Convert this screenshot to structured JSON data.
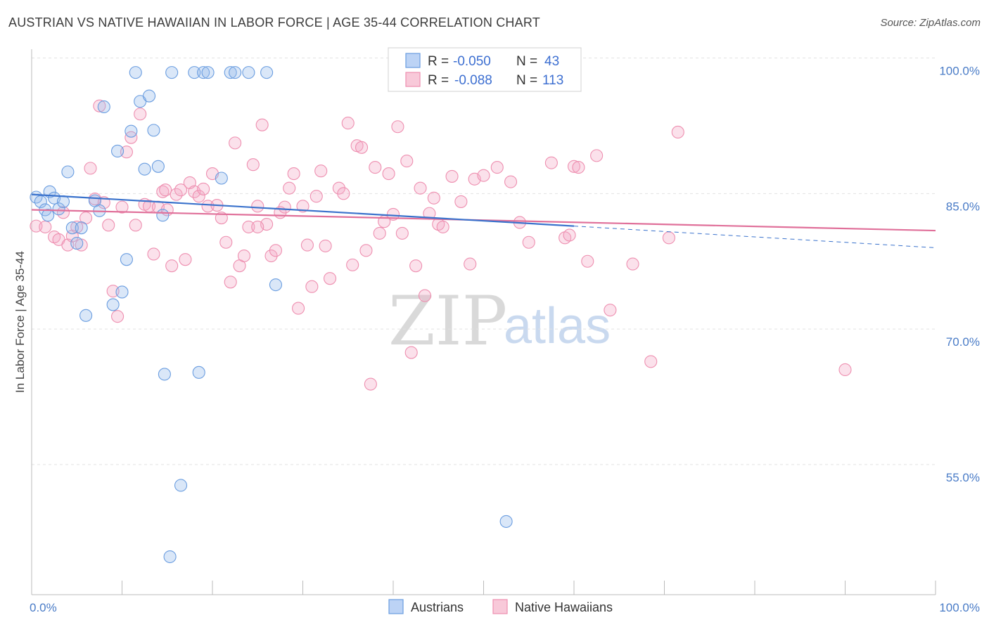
{
  "title": "AUSTRIAN VS NATIVE HAWAIIAN IN LABOR FORCE | AGE 35-44 CORRELATION CHART",
  "source": "Source: ZipAtlas.com",
  "watermark": {
    "zip": "ZIP",
    "atlas": "atlas"
  },
  "legend": {
    "rows": [
      {
        "r_label": "R =",
        "r_value": "-0.050",
        "n_label": "N =",
        "n_value": "43"
      },
      {
        "r_label": "R =",
        "r_value": "-0.088",
        "n_label": "N =",
        "n_value": "113"
      }
    ]
  },
  "bottom_legend": [
    "Austrians",
    "Native Hawaiians"
  ],
  "chart_data": {
    "type": "scatter",
    "title": "AUSTRIAN VS NATIVE HAWAIIAN IN LABOR FORCE | AGE 35-44 CORRELATION CHART",
    "ylabel": "In Labor Force | Age 35-44",
    "xlabel": "",
    "xlim": [
      0,
      100
    ],
    "ylim": [
      42,
      103
    ],
    "x_tick_labels": [
      {
        "value": 0,
        "label": "0.0%"
      },
      {
        "value": 100,
        "label": "100.0%"
      }
    ],
    "y_tick_labels": [
      {
        "value": 100,
        "label": "100.0%"
      },
      {
        "value": 85,
        "label": "85.0%"
      },
      {
        "value": 70,
        "label": "70.0%"
      },
      {
        "value": 55,
        "label": "55.0%"
      }
    ],
    "legend_position": "top-center",
    "grid": true,
    "colors": {
      "austrians": "#6a9de0",
      "native_hawaiians": "#ee8fb0",
      "austrians_line": "#3a72cc",
      "native_hawaiians_line": "#e0709a"
    },
    "series": [
      {
        "name": "Austrians",
        "trend": {
          "x0": 0,
          "y0": 86.3,
          "x1": 60,
          "y1": 82.8,
          "dash_to_x": 100,
          "dash_to_y": 80.4
        },
        "points": [
          [
            0.5,
            86.0
          ],
          [
            1.0,
            85.5
          ],
          [
            1.5,
            84.6
          ],
          [
            2.0,
            86.6
          ],
          [
            2.5,
            85.9
          ],
          [
            3.0,
            84.7
          ],
          [
            4.0,
            88.8
          ],
          [
            4.5,
            82.6
          ],
          [
            5.5,
            82.6
          ],
          [
            5.0,
            80.9
          ],
          [
            7.0,
            85.6
          ],
          [
            7.5,
            84.5
          ],
          [
            8.0,
            96.0
          ],
          [
            9.0,
            74.1
          ],
          [
            9.5,
            91.1
          ],
          [
            10.0,
            75.5
          ],
          [
            10.5,
            79.1
          ],
          [
            11.0,
            93.3
          ],
          [
            12.0,
            96.6
          ],
          [
            11.5,
            99.8
          ],
          [
            12.5,
            89.1
          ],
          [
            13.0,
            97.2
          ],
          [
            13.5,
            93.4
          ],
          [
            14.0,
            89.4
          ],
          [
            14.5,
            84.0
          ],
          [
            14.7,
            66.4
          ],
          [
            15.5,
            99.8
          ],
          [
            15.3,
            46.2
          ],
          [
            16.5,
            54.1
          ],
          [
            18.0,
            99.8
          ],
          [
            18.5,
            66.6
          ],
          [
            19.0,
            99.8
          ],
          [
            19.5,
            99.8
          ],
          [
            21.0,
            88.1
          ],
          [
            22.0,
            99.8
          ],
          [
            22.5,
            99.8
          ],
          [
            24.0,
            99.8
          ],
          [
            27.0,
            76.3
          ],
          [
            26.0,
            99.8
          ],
          [
            52.5,
            50.1
          ],
          [
            6.0,
            72.9
          ],
          [
            3.5,
            85.5
          ],
          [
            1.8,
            84.0
          ]
        ]
      },
      {
        "name": "Native Hawaiians",
        "trend": {
          "x0": 0,
          "y0": 84.6,
          "x1": 100,
          "y1": 82.3
        },
        "points": [
          [
            0.5,
            82.8
          ],
          [
            1.5,
            82.7
          ],
          [
            2.5,
            81.6
          ],
          [
            3.0,
            81.3
          ],
          [
            3.5,
            84.3
          ],
          [
            4.0,
            80.7
          ],
          [
            4.5,
            81.7
          ],
          [
            5.0,
            82.7
          ],
          [
            5.5,
            80.7
          ],
          [
            6.0,
            83.7
          ],
          [
            6.5,
            89.2
          ],
          [
            7.0,
            85.8
          ],
          [
            7.5,
            96.1
          ],
          [
            8.0,
            85.4
          ],
          [
            8.5,
            82.9
          ],
          [
            9.0,
            75.6
          ],
          [
            9.5,
            72.8
          ],
          [
            10.0,
            84.9
          ],
          [
            10.5,
            91.0
          ],
          [
            11.0,
            92.6
          ],
          [
            11.5,
            82.9
          ],
          [
            12.0,
            95.2
          ],
          [
            12.5,
            85.2
          ],
          [
            13.0,
            85.0
          ],
          [
            13.5,
            79.7
          ],
          [
            14.0,
            84.9
          ],
          [
            14.5,
            86.6
          ],
          [
            15.0,
            84.6
          ],
          [
            15.5,
            78.4
          ],
          [
            16.0,
            86.3
          ],
          [
            16.5,
            86.8
          ],
          [
            17.0,
            79.1
          ],
          [
            17.5,
            87.6
          ],
          [
            18.0,
            86.6
          ],
          [
            18.5,
            86.1
          ],
          [
            19.0,
            86.9
          ],
          [
            19.5,
            85.0
          ],
          [
            20.0,
            88.6
          ],
          [
            20.5,
            85.1
          ],
          [
            21.0,
            83.7
          ],
          [
            21.5,
            81.0
          ],
          [
            22.0,
            76.6
          ],
          [
            22.5,
            92.0
          ],
          [
            23.0,
            78.4
          ],
          [
            23.5,
            79.5
          ],
          [
            24.0,
            82.7
          ],
          [
            24.5,
            89.6
          ],
          [
            25.0,
            85.0
          ],
          [
            25.5,
            94.0
          ],
          [
            26.0,
            83.0
          ],
          [
            26.5,
            79.5
          ],
          [
            27.0,
            80.1
          ],
          [
            27.5,
            84.3
          ],
          [
            28.0,
            84.9
          ],
          [
            28.5,
            87.0
          ],
          [
            29.0,
            88.6
          ],
          [
            29.5,
            73.7
          ],
          [
            30.0,
            85.0
          ],
          [
            30.5,
            80.7
          ],
          [
            31.0,
            76.1
          ],
          [
            31.5,
            86.1
          ],
          [
            32.0,
            88.9
          ],
          [
            32.5,
            80.6
          ],
          [
            33.0,
            77.0
          ],
          [
            34.0,
            87.0
          ],
          [
            34.5,
            86.4
          ],
          [
            35.0,
            94.2
          ],
          [
            35.5,
            78.5
          ],
          [
            36.0,
            91.7
          ],
          [
            36.5,
            91.5
          ],
          [
            37.0,
            80.1
          ],
          [
            37.5,
            65.3
          ],
          [
            38.0,
            89.3
          ],
          [
            38.5,
            82.0
          ],
          [
            39.0,
            83.3
          ],
          [
            39.5,
            88.6
          ],
          [
            40.0,
            84.1
          ],
          [
            40.5,
            93.8
          ],
          [
            41.0,
            82.0
          ],
          [
            41.5,
            90.0
          ],
          [
            42.0,
            68.8
          ],
          [
            42.5,
            78.4
          ],
          [
            43.0,
            87.0
          ],
          [
            43.5,
            75.1
          ],
          [
            44.0,
            84.2
          ],
          [
            44.5,
            85.9
          ],
          [
            45.0,
            83.0
          ],
          [
            45.5,
            82.7
          ],
          [
            46.5,
            88.3
          ],
          [
            47.5,
            85.5
          ],
          [
            48.5,
            78.6
          ],
          [
            49.0,
            88.0
          ],
          [
            50.0,
            88.4
          ],
          [
            51.5,
            89.3
          ],
          [
            52.5,
            99.8
          ],
          [
            53.0,
            87.7
          ],
          [
            54.0,
            83.2
          ],
          [
            55.0,
            81.0
          ],
          [
            57.5,
            89.8
          ],
          [
            59.0,
            81.5
          ],
          [
            60.0,
            89.4
          ],
          [
            60.5,
            89.3
          ],
          [
            61.5,
            78.9
          ],
          [
            62.5,
            90.6
          ],
          [
            64.0,
            73.5
          ],
          [
            66.5,
            78.6
          ],
          [
            68.5,
            67.8
          ],
          [
            70.5,
            81.5
          ],
          [
            71.5,
            93.2
          ],
          [
            90.0,
            66.9
          ],
          [
            59.5,
            81.8
          ],
          [
            25.0,
            82.7
          ],
          [
            14.8,
            86.8
          ]
        ]
      }
    ]
  }
}
